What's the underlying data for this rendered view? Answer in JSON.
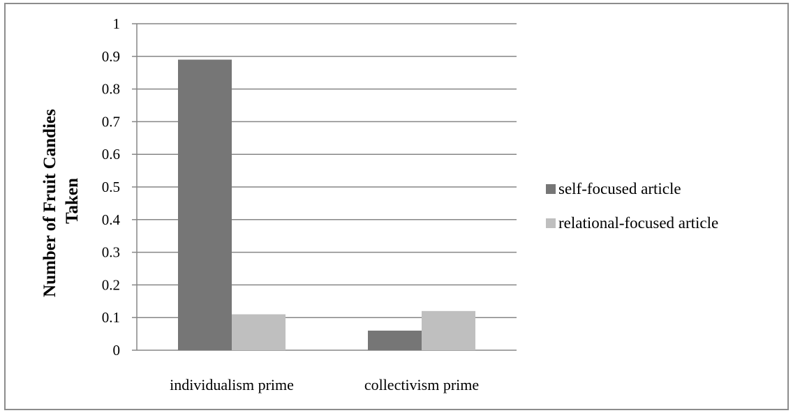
{
  "chart_data": {
    "type": "bar",
    "title": "",
    "xlabel": "",
    "ylabel_lines": [
      "Number of Fruit Candies",
      "Taken"
    ],
    "categories": [
      "individualism prime",
      "collectivism prime"
    ],
    "series": [
      {
        "name": "self-focused article",
        "values": [
          0.89,
          0.06
        ],
        "color": "#767676"
      },
      {
        "name": "relational-focused article",
        "values": [
          0.11,
          0.12
        ],
        "color": "#bfbfbf"
      }
    ],
    "ylim": [
      0,
      1
    ],
    "yticks": [
      0,
      0.1,
      0.2,
      0.3,
      0.4,
      0.5,
      0.6,
      0.7,
      0.8,
      0.9,
      1
    ],
    "ytick_labels": [
      "0",
      "0.1",
      "0.2",
      "0.3",
      "0.4",
      "0.5",
      "0.6",
      "0.7",
      "0.8",
      "0.9",
      "1"
    ],
    "grid": true,
    "gridline_color": "#868686",
    "legend_position": "right"
  }
}
